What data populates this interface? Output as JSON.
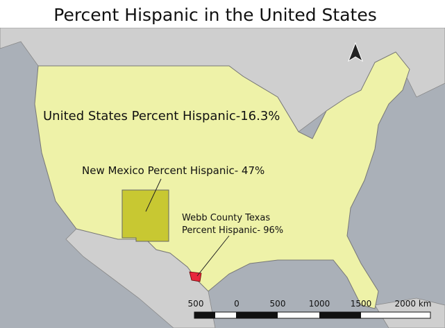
{
  "title": "Percent Hispanic in the United States",
  "annotations": {
    "united_states": "United States Percent Hispanic-16.3%",
    "new_mexico": "New Mexico Percent Hispanic- 47%",
    "webb_county": [
      "Webb County Texas",
      "Percent Hispanic- 96%"
    ]
  },
  "scale_bar": {
    "labels": [
      "500",
      "0",
      "500",
      "1000",
      "1500",
      "2000 km"
    ]
  }
}
